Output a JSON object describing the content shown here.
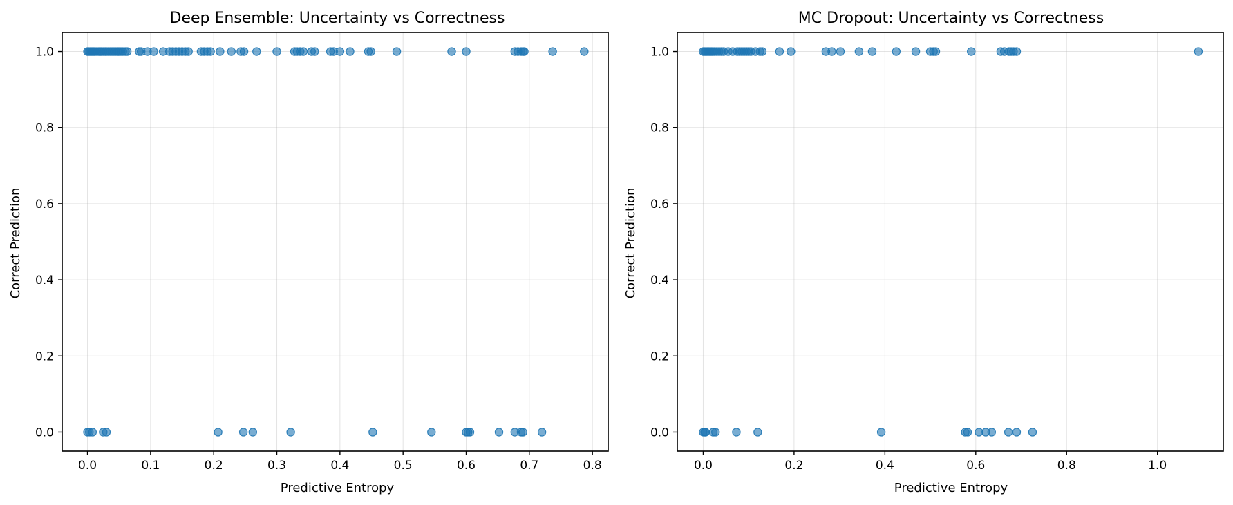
{
  "chart_data": [
    {
      "type": "scatter",
      "title": "Deep Ensemble: Uncertainty vs Correctness",
      "xlabel": "Predictive Entropy",
      "ylabel": "Correct Prediction",
      "xlim": [
        -0.04,
        0.825
      ],
      "ylim": [
        -0.05,
        1.05
      ],
      "xticks": [
        0.0,
        0.1,
        0.2,
        0.3,
        0.4,
        0.5,
        0.6,
        0.7,
        0.8
      ],
      "xtick_labels": [
        "0.0",
        "0.1",
        "0.2",
        "0.3",
        "0.4",
        "0.5",
        "0.6",
        "0.7",
        "0.8"
      ],
      "yticks": [
        0.0,
        0.2,
        0.4,
        0.6,
        0.8,
        1.0
      ],
      "ytick_labels": [
        "0.0",
        "0.2",
        "0.4",
        "0.6",
        "0.8",
        "1.0"
      ],
      "grid": true,
      "correct_entropy": [
        0.0,
        0.002,
        0.004,
        0.006,
        0.008,
        0.01,
        0.012,
        0.015,
        0.018,
        0.02,
        0.022,
        0.025,
        0.028,
        0.03,
        0.033,
        0.036,
        0.039,
        0.042,
        0.045,
        0.048,
        0.05,
        0.053,
        0.056,
        0.06,
        0.063,
        0.082,
        0.085,
        0.095,
        0.105,
        0.12,
        0.13,
        0.135,
        0.14,
        0.145,
        0.15,
        0.155,
        0.16,
        0.18,
        0.185,
        0.19,
        0.195,
        0.21,
        0.228,
        0.243,
        0.248,
        0.268,
        0.3,
        0.328,
        0.332,
        0.337,
        0.342,
        0.355,
        0.36,
        0.385,
        0.39,
        0.4,
        0.416,
        0.445,
        0.449,
        0.49,
        0.577,
        0.6,
        0.677,
        0.682,
        0.687,
        0.69,
        0.692,
        0.737,
        0.787
      ],
      "incorrect_entropy": [
        0.0,
        0.003,
        0.008,
        0.025,
        0.03,
        0.207,
        0.247,
        0.262,
        0.322,
        0.452,
        0.545,
        0.6,
        0.603,
        0.606,
        0.652,
        0.677,
        0.687,
        0.69,
        0.72
      ]
    },
    {
      "type": "scatter",
      "title": "MC Dropout: Uncertainty vs Correctness",
      "xlabel": "Predictive Entropy",
      "ylabel": "Correct Prediction",
      "xlim": [
        -0.057,
        1.145
      ],
      "ylim": [
        -0.05,
        1.05
      ],
      "xticks": [
        0.0,
        0.2,
        0.4,
        0.6,
        0.8,
        1.0
      ],
      "xtick_labels": [
        "0.0",
        "0.2",
        "0.4",
        "0.6",
        "0.8",
        "1.0"
      ],
      "yticks": [
        0.0,
        0.2,
        0.4,
        0.6,
        0.8,
        1.0
      ],
      "ytick_labels": [
        "0.0",
        "0.2",
        "0.4",
        "0.6",
        "0.8",
        "1.0"
      ],
      "grid": true,
      "correct_entropy": [
        0.0,
        0.003,
        0.006,
        0.009,
        0.012,
        0.015,
        0.018,
        0.021,
        0.025,
        0.03,
        0.035,
        0.04,
        0.045,
        0.055,
        0.065,
        0.075,
        0.08,
        0.085,
        0.09,
        0.095,
        0.1,
        0.105,
        0.115,
        0.125,
        0.13,
        0.168,
        0.193,
        0.27,
        0.283,
        0.302,
        0.343,
        0.372,
        0.425,
        0.468,
        0.5,
        0.507,
        0.512,
        0.59,
        0.655,
        0.663,
        0.673,
        0.678,
        0.683,
        0.69,
        1.09
      ],
      "incorrect_entropy": [
        0.0,
        0.003,
        0.005,
        0.022,
        0.027,
        0.073,
        0.12,
        0.392,
        0.577,
        0.582,
        0.607,
        0.622,
        0.635,
        0.672,
        0.69,
        0.725
      ]
    }
  ]
}
